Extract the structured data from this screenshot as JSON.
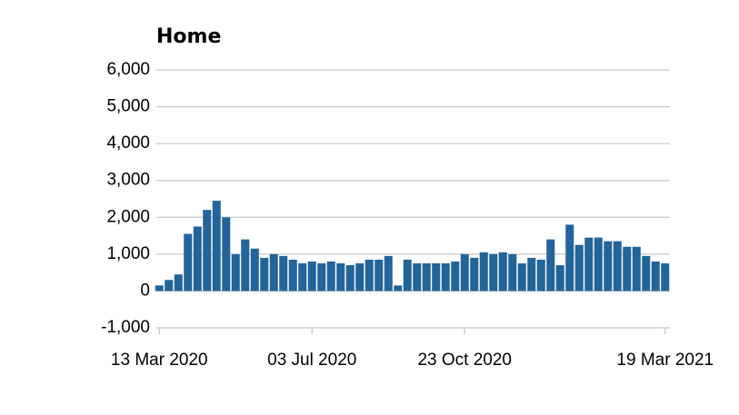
{
  "chart_data": {
    "type": "bar",
    "title": "Home",
    "categories": [
      "13 Mar 2020",
      null,
      null,
      null,
      null,
      null,
      null,
      null,
      null,
      null,
      null,
      null,
      null,
      null,
      null,
      null,
      "03 Jul 2020",
      null,
      null,
      null,
      null,
      null,
      null,
      null,
      null,
      null,
      null,
      null,
      null,
      null,
      null,
      null,
      "23 Oct 2020",
      null,
      null,
      null,
      null,
      null,
      null,
      null,
      null,
      null,
      null,
      null,
      null,
      null,
      null,
      null,
      null,
      null,
      null,
      null,
      null,
      "19 Mar 2021"
    ],
    "values": [
      150,
      300,
      450,
      1550,
      1750,
      2200,
      2450,
      2000,
      1000,
      1400,
      1150,
      900,
      1000,
      950,
      850,
      750,
      800,
      750,
      800,
      750,
      700,
      750,
      850,
      850,
      950,
      150,
      850,
      750,
      750,
      750,
      750,
      800,
      1000,
      900,
      1050,
      1000,
      1050,
      1000,
      750,
      900,
      850,
      1400,
      700,
      1800,
      1250,
      1450,
      1450,
      1350,
      1350,
      1200,
      1200,
      950,
      800,
      750
    ],
    "color": "#23649a",
    "ylim": [
      -1000,
      6000
    ],
    "yticks": [
      {
        "value": -1000,
        "label": "-1,000"
      },
      0,
      {
        "value": 1000,
        "label": "1,000"
      },
      {
        "value": 2000,
        "label": "2,000"
      },
      {
        "value": 3000,
        "label": "3,000"
      },
      {
        "value": 4000,
        "label": "4,000"
      },
      {
        "value": 5000,
        "label": "5,000"
      },
      {
        "value": 6000,
        "label": "6,000"
      }
    ],
    "grid": true
  }
}
